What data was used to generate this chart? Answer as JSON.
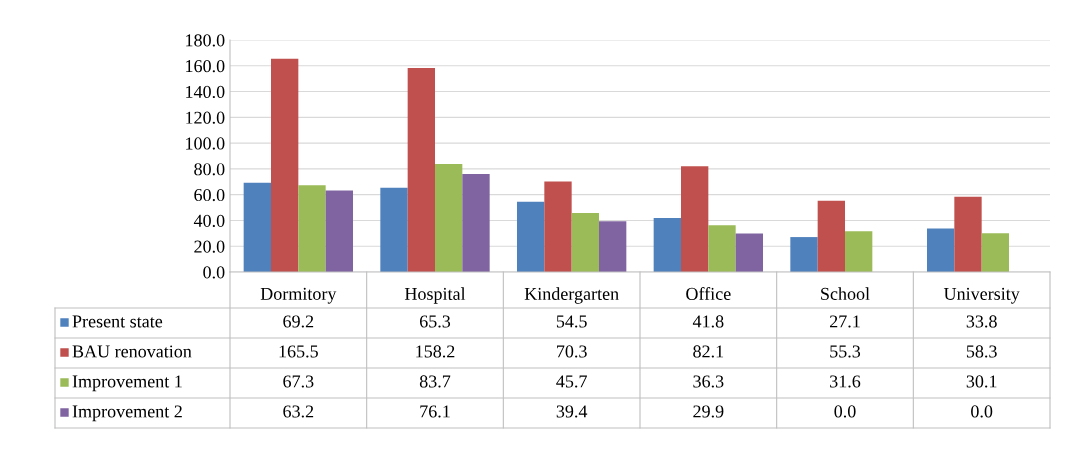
{
  "chart_data": {
    "type": "bar",
    "categories": [
      "Dormitory",
      "Hospital",
      "Kindergarten",
      "Office",
      "School",
      "University"
    ],
    "series": [
      {
        "name": "Present state",
        "color": "#4f81bd",
        "values": [
          69.2,
          65.3,
          54.5,
          41.8,
          27.1,
          33.8
        ],
        "value_labels": [
          "69.2",
          "65.3",
          "54.5",
          "41.8",
          "27.1",
          "33.8"
        ]
      },
      {
        "name": "BAU renovation",
        "color": "#c0504d",
        "values": [
          165.5,
          158.2,
          70.3,
          82.1,
          55.3,
          58.3
        ],
        "value_labels": [
          "165.5",
          "158.2",
          "70.3",
          "82.1",
          "55.3",
          "58.3"
        ]
      },
      {
        "name": "Improvement 1",
        "color": "#9bbb59",
        "values": [
          67.3,
          83.7,
          45.7,
          36.3,
          31.6,
          30.1
        ],
        "value_labels": [
          "67.3",
          "83.7",
          "45.7",
          "36.3",
          "31.6",
          "30.1"
        ]
      },
      {
        "name": "Improvement 2",
        "color": "#8064a2",
        "values": [
          63.2,
          76.1,
          39.4,
          29.9,
          0.0,
          0.0
        ],
        "value_labels": [
          "63.2",
          "76.1",
          "39.4",
          "29.9",
          "0.0",
          "0.0"
        ]
      }
    ],
    "ylim": [
      0,
      180
    ],
    "yticks": [
      {
        "value": 0,
        "label": "0.0"
      },
      {
        "value": 20,
        "label": "20.0"
      },
      {
        "value": 40,
        "label": "40.0"
      },
      {
        "value": 60,
        "label": "60.0"
      },
      {
        "value": 80,
        "label": "80.0"
      },
      {
        "value": 100,
        "label": "100.0"
      },
      {
        "value": 120,
        "label": "120.0"
      },
      {
        "value": 140,
        "label": "140.0"
      },
      {
        "value": 160,
        "label": "160.0"
      },
      {
        "value": 180,
        "label": "180.0"
      }
    ],
    "grid": "y",
    "legend": "bottom left"
  }
}
